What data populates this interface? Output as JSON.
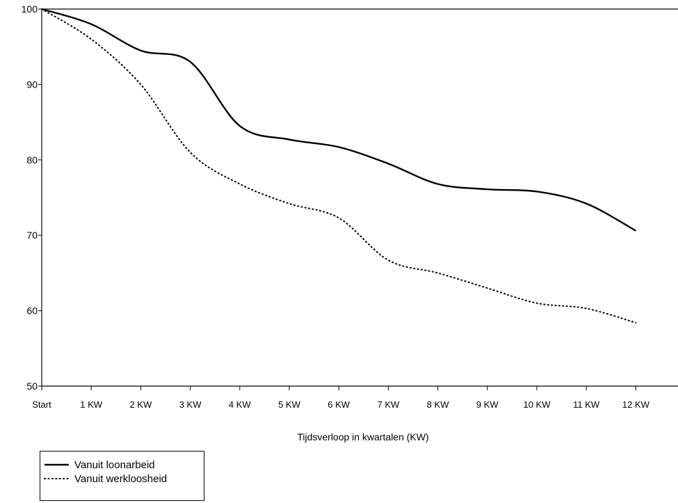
{
  "chart_data": {
    "type": "line",
    "title": "",
    "xlabel": "Tijdsverloop in kwartalen (KW)",
    "ylabel": "",
    "ylim": [
      50,
      100
    ],
    "yticks": [
      50,
      60,
      70,
      80,
      90,
      100
    ],
    "categories": [
      "Start",
      "1 KW",
      "2 KW",
      "3 KW",
      "4 KW",
      "5 KW",
      "6 KW",
      "7 KW",
      "8 KW",
      "9 KW",
      "10 KW",
      "11 KW",
      "12 KW"
    ],
    "grid": false,
    "legend_position": "bottom-left",
    "series": [
      {
        "name": "Vanuit loonarbeid",
        "style": "solid",
        "color": "#000000",
        "values": [
          100,
          98,
          94.5,
          93,
          84.5,
          82.7,
          81.7,
          79.5,
          76.8,
          76.1,
          75.8,
          74.2,
          70.6
        ]
      },
      {
        "name": "Vanuit werkloosheid",
        "style": "dotted",
        "color": "#000000",
        "values": [
          100,
          96,
          90,
          81,
          76.8,
          74.2,
          72.3,
          66.7,
          65,
          63,
          61,
          60.3,
          58.4
        ]
      }
    ]
  }
}
